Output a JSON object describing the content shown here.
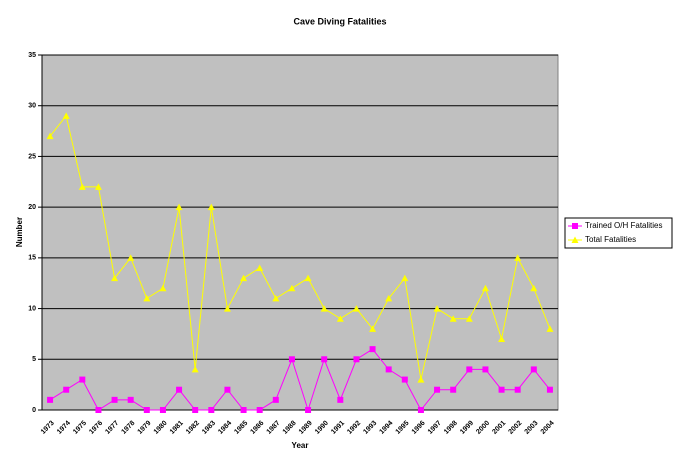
{
  "chart_data": {
    "type": "line",
    "title": "Cave Diving Fatalities",
    "x_label": "Year",
    "y_label": "Number",
    "categories": [
      "1973",
      "1974",
      "1975",
      "1976",
      "1977",
      "1978",
      "1979",
      "1980",
      "1981",
      "1982",
      "1983",
      "1984",
      "1985",
      "1986",
      "1987",
      "1988",
      "1989",
      "1990",
      "1991",
      "1992",
      "1993",
      "1994",
      "1995",
      "1996",
      "1997",
      "1998",
      "1999",
      "2000",
      "2001",
      "2002",
      "2003",
      "2004"
    ],
    "series": [
      {
        "name": "Trained O/H Fatalities",
        "color": "#ff00ff",
        "marker": "square",
        "values": [
          1,
          2,
          3,
          0,
          1,
          1,
          0,
          0,
          2,
          0,
          0,
          2,
          0,
          0,
          1,
          5,
          0,
          5,
          1,
          5,
          6,
          4,
          3,
          0,
          2,
          2,
          4,
          4,
          2,
          2,
          4,
          2
        ]
      },
      {
        "name": "Total Fatalities",
        "color": "#ffff00",
        "marker": "triangle",
        "values": [
          27,
          29,
          22,
          22,
          13,
          15,
          11,
          12,
          20,
          4,
          20,
          10,
          13,
          14,
          11,
          12,
          13,
          10,
          9,
          10,
          8,
          11,
          13,
          3,
          10,
          9,
          9,
          12,
          7,
          15,
          12,
          8
        ]
      }
    ],
    "ylim": [
      0,
      35
    ],
    "yticks": [
      0,
      5,
      10,
      15,
      20,
      25,
      30,
      35
    ],
    "grid": true,
    "legend": "right",
    "plot_background": "#c0c0c0"
  }
}
